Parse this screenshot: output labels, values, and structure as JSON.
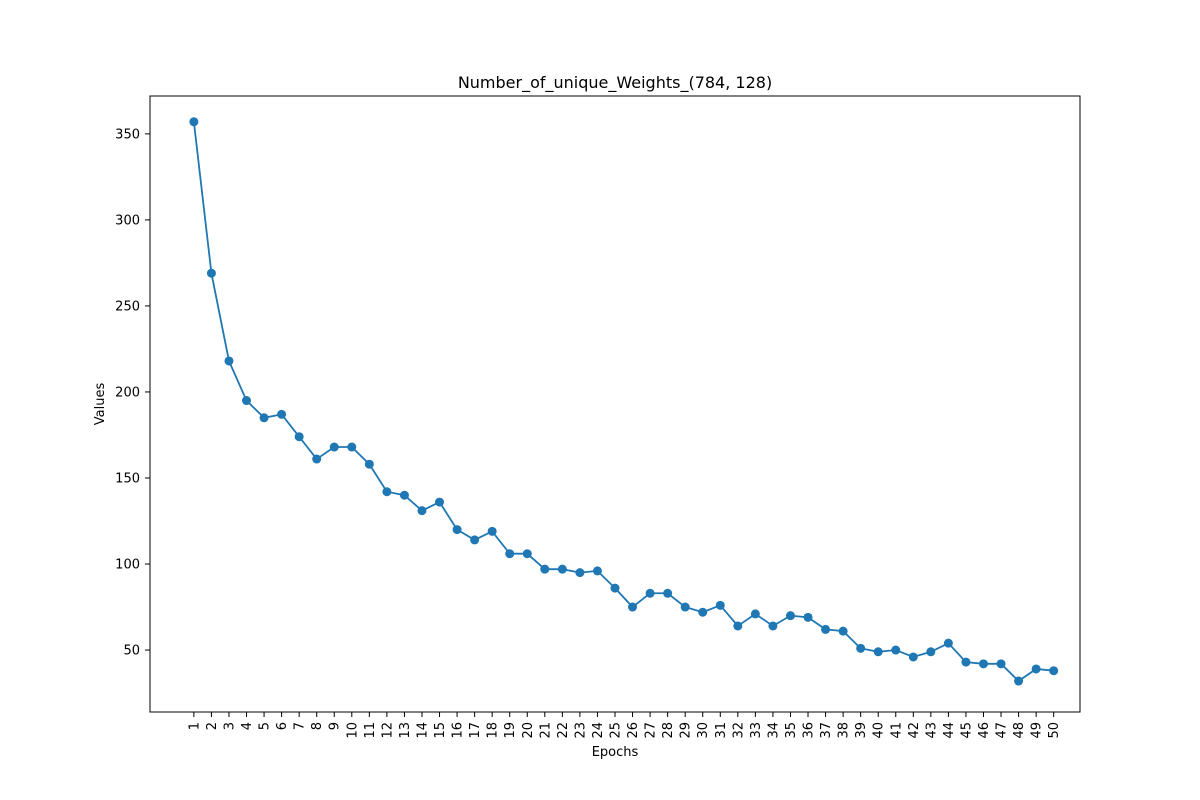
{
  "chart_data": {
    "type": "line",
    "title": "Number_of_unique_Weights_(784, 128)",
    "xlabel": "Epochs",
    "ylabel": "Values",
    "x": [
      1,
      2,
      3,
      4,
      5,
      6,
      7,
      8,
      9,
      10,
      11,
      12,
      13,
      14,
      15,
      16,
      17,
      18,
      19,
      20,
      21,
      22,
      23,
      24,
      25,
      26,
      27,
      28,
      29,
      30,
      31,
      32,
      33,
      34,
      35,
      36,
      37,
      38,
      39,
      40,
      41,
      42,
      43,
      44,
      45,
      46,
      47,
      48,
      49,
      50
    ],
    "xticklabels": [
      "1",
      "2",
      "3",
      "4",
      "5",
      "6",
      "7",
      "8",
      "9",
      "10",
      "11",
      "12",
      "13",
      "14",
      "15",
      "16",
      "17",
      "18",
      "19",
      "20",
      "21",
      "22",
      "23",
      "24",
      "25",
      "26",
      "27",
      "28",
      "29",
      "30",
      "31",
      "32",
      "33",
      "34",
      "35",
      "36",
      "37",
      "38",
      "39",
      "40",
      "41",
      "42",
      "43",
      "44",
      "45",
      "46",
      "47",
      "48",
      "49",
      "50"
    ],
    "yticks": [
      50,
      100,
      150,
      200,
      250,
      300,
      350
    ],
    "yticklabels": [
      "50",
      "100",
      "150",
      "200",
      "250",
      "300",
      "350"
    ],
    "ylim": [
      14,
      372
    ],
    "xlim": [
      -1.5,
      51.5
    ],
    "grid": false,
    "marker": "circle",
    "color": "#1f77b4",
    "series": [
      {
        "values": [
          357,
          269,
          218,
          195,
          185,
          187,
          174,
          161,
          168,
          168,
          158,
          142,
          140,
          131,
          136,
          120,
          114,
          119,
          106,
          106,
          97,
          97,
          95,
          96,
          86,
          75,
          83,
          83,
          75,
          72,
          76,
          64,
          71,
          64,
          70,
          69,
          62,
          61,
          51,
          49,
          50,
          46,
          49,
          54,
          43,
          42,
          42,
          32,
          39,
          38
        ]
      }
    ]
  }
}
